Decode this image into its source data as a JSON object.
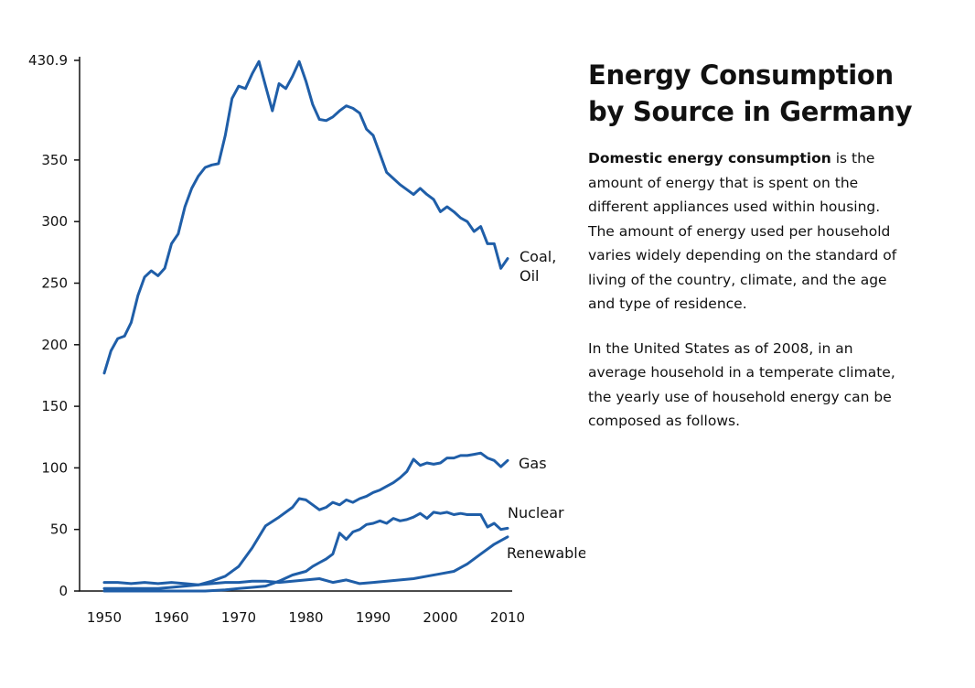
{
  "panel": {
    "title_lines": [
      "Energy Consumption",
      "by Source in Germany"
    ],
    "para1_bold": "Domestic energy consumption",
    "para1_first_rest": " is the",
    "para1_lines": [
      "amount of energy that is spent on the",
      "different appliances used within housing.",
      "The amount of energy used per household",
      "varies widely depending on the standard of",
      "living of the country, climate, and the age",
      "and type of residence."
    ],
    "para2_lines": [
      "In the United States as of 2008, in an",
      "average household in a temperate climate,",
      "the yearly use of household energy can be",
      "composed as follows."
    ]
  },
  "chart_data": {
    "type": "line",
    "title": "Energy Consumption by Source in Germany",
    "xlabel": "",
    "ylabel": "",
    "xlim": [
      1950,
      2010
    ],
    "ylim": [
      0,
      430.9
    ],
    "x_ticks": [
      1950,
      1960,
      1970,
      1980,
      1990,
      2000,
      2010
    ],
    "y_ticks": [
      0,
      50,
      100,
      150,
      200,
      250,
      300,
      350,
      430.9
    ],
    "grid": false,
    "legend": "inline labels at line ends",
    "line_color": "#1f5ea8",
    "series": [
      {
        "name": "Coal, Oil",
        "label_lines": [
          "Coal,",
          "Oil"
        ],
        "x": [
          1950,
          1951,
          1952,
          1953,
          1954,
          1955,
          1956,
          1957,
          1958,
          1959,
          1960,
          1961,
          1962,
          1963,
          1964,
          1965,
          1966,
          1967,
          1968,
          1969,
          1970,
          1971,
          1972,
          1973,
          1974,
          1975,
          1976,
          1977,
          1978,
          1979,
          1980,
          1981,
          1982,
          1983,
          1984,
          1985,
          1986,
          1987,
          1988,
          1989,
          1990,
          1991,
          1992,
          1993,
          1994,
          1995,
          1996,
          1997,
          1998,
          1999,
          2000,
          2001,
          2002,
          2003,
          2004,
          2005,
          2006,
          2007,
          2008,
          2009,
          2010
        ],
        "values": [
          177,
          195,
          205,
          207,
          218,
          240,
          255,
          260,
          256,
          262,
          282,
          290,
          312,
          327,
          337,
          344,
          346,
          347,
          370,
          400,
          410,
          408,
          420,
          430,
          410,
          390,
          412,
          408,
          418,
          430,
          414,
          395,
          383,
          382,
          385,
          390,
          394,
          392,
          388,
          375,
          370,
          355,
          340,
          335,
          330,
          326,
          322,
          327,
          322,
          318,
          308,
          312,
          308,
          303,
          300,
          292,
          296,
          282,
          282,
          262,
          270
        ]
      },
      {
        "name": "Gas",
        "label_lines": [
          "Gas"
        ],
        "x": [
          1950,
          1952,
          1954,
          1956,
          1958,
          1960,
          1962,
          1964,
          1966,
          1968,
          1970,
          1972,
          1974,
          1976,
          1978,
          1979,
          1980,
          1981,
          1982,
          1983,
          1984,
          1985,
          1986,
          1987,
          1988,
          1989,
          1990,
          1991,
          1992,
          1993,
          1994,
          1995,
          1996,
          1997,
          1998,
          1999,
          2000,
          2001,
          2002,
          2003,
          2004,
          2005,
          2006,
          2007,
          2008,
          2009,
          2010
        ],
        "values": [
          2,
          2,
          2,
          2,
          2,
          3,
          4,
          5,
          8,
          12,
          20,
          35,
          53,
          60,
          68,
          75,
          74,
          70,
          66,
          68,
          72,
          70,
          74,
          72,
          75,
          77,
          80,
          82,
          85,
          88,
          92,
          97,
          107,
          102,
          104,
          103,
          104,
          108,
          108,
          110,
          110,
          111,
          112,
          108,
          106,
          101,
          106
        ]
      },
      {
        "name": "Nuclear",
        "label_lines": [
          "Nuclear"
        ],
        "x": [
          1950,
          1955,
          1960,
          1965,
          1968,
          1970,
          1972,
          1974,
          1976,
          1978,
          1980,
          1981,
          1982,
          1983,
          1984,
          1985,
          1986,
          1987,
          1988,
          1989,
          1990,
          1991,
          1992,
          1993,
          1994,
          1995,
          1996,
          1997,
          1998,
          1999,
          2000,
          2001,
          2002,
          2003,
          2004,
          2005,
          2006,
          2007,
          2008,
          2009,
          2010
        ],
        "values": [
          0,
          0,
          0,
          0,
          1,
          2,
          3,
          4,
          8,
          13,
          16,
          20,
          23,
          26,
          30,
          47,
          42,
          48,
          50,
          54,
          55,
          57,
          55,
          59,
          57,
          58,
          60,
          63,
          59,
          64,
          63,
          64,
          62,
          63,
          62,
          62,
          62,
          52,
          55,
          50,
          51
        ]
      },
      {
        "name": "Renewables",
        "label_lines": [
          "Renewables"
        ],
        "x": [
          1950,
          1952,
          1954,
          1956,
          1958,
          1960,
          1962,
          1964,
          1966,
          1968,
          1970,
          1972,
          1974,
          1976,
          1978,
          1980,
          1982,
          1984,
          1986,
          1988,
          1990,
          1992,
          1994,
          1996,
          1998,
          2000,
          2002,
          2004,
          2006,
          2008,
          2010
        ],
        "values": [
          7,
          7,
          6,
          7,
          6,
          7,
          6,
          5,
          6,
          7,
          7,
          8,
          8,
          7,
          8,
          9,
          10,
          7,
          9,
          6,
          7,
          8,
          9,
          10,
          12,
          14,
          16,
          22,
          30,
          38,
          44
        ]
      }
    ]
  }
}
